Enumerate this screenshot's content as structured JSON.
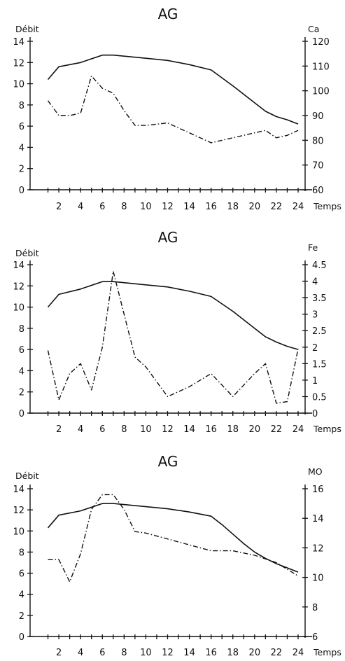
{
  "chart_data": [
    {
      "type": "line",
      "title": "AG",
      "xlabel": "Temps",
      "ylabel": "Débit",
      "y2label": "Ca",
      "xlim": [
        0,
        24
      ],
      "ylim": [
        0,
        14
      ],
      "y2lim": [
        60,
        120
      ],
      "xticks": [
        2,
        4,
        6,
        8,
        10,
        12,
        14,
        16,
        18,
        20,
        22,
        24
      ],
      "yticks": [
        0,
        2,
        4,
        6,
        8,
        10,
        12,
        14
      ],
      "y2ticks": [
        60,
        70,
        80,
        90,
        100,
        110,
        120
      ],
      "series": [
        {
          "axis": "left",
          "style": "solid",
          "x": [
            1,
            2,
            4,
            6,
            7,
            8,
            10,
            12,
            14,
            16,
            18,
            20,
            21,
            22,
            23,
            24
          ],
          "y": [
            10.4,
            11.6,
            12.0,
            12.7,
            12.7,
            12.6,
            12.4,
            12.2,
            11.8,
            11.3,
            9.8,
            8.2,
            7.4,
            6.9,
            6.6,
            6.2
          ]
        },
        {
          "axis": "right",
          "style": "dash-dot",
          "x": [
            1,
            2,
            3,
            4,
            5,
            6,
            7,
            8,
            9,
            10,
            12,
            14,
            16,
            18,
            20,
            21,
            22,
            23,
            24
          ],
          "y": [
            96,
            90,
            90,
            91,
            106,
            101,
            99,
            92,
            86,
            86,
            87,
            83,
            79,
            81,
            83,
            84,
            81,
            82,
            84
          ]
        }
      ]
    },
    {
      "type": "line",
      "title": "AG",
      "xlabel": "Temps",
      "ylabel": "Débit",
      "y2label": "Fe",
      "xlim": [
        0,
        24
      ],
      "ylim": [
        0,
        14
      ],
      "y2lim": [
        0,
        4.5
      ],
      "xticks": [
        2,
        4,
        6,
        8,
        10,
        12,
        14,
        16,
        18,
        20,
        22,
        24
      ],
      "yticks": [
        0,
        2,
        4,
        6,
        8,
        10,
        12,
        14
      ],
      "y2ticks": [
        0,
        0.5,
        1,
        1.5,
        2,
        2.5,
        3,
        3.5,
        4,
        4.5
      ],
      "series": [
        {
          "axis": "left",
          "style": "solid",
          "x": [
            1,
            2,
            4,
            6,
            7,
            8,
            10,
            12,
            14,
            16,
            18,
            20,
            21,
            22,
            23,
            24
          ],
          "y": [
            10.0,
            11.2,
            11.7,
            12.4,
            12.4,
            12.3,
            12.1,
            11.9,
            11.5,
            11.0,
            9.6,
            8.0,
            7.2,
            6.7,
            6.3,
            6.0
          ]
        },
        {
          "axis": "right",
          "style": "dash-dot",
          "x": [
            1,
            2,
            3,
            4,
            5,
            6,
            7,
            8,
            9,
            10,
            12,
            14,
            16,
            18,
            20,
            21,
            22,
            23,
            24
          ],
          "y": [
            1.9,
            0.4,
            1.2,
            1.5,
            0.7,
            2.0,
            4.3,
            3.0,
            1.7,
            1.4,
            0.5,
            0.8,
            1.2,
            0.5,
            1.2,
            1.5,
            0.3,
            0.35,
            1.95
          ]
        }
      ]
    },
    {
      "type": "line",
      "title": "AG",
      "xlabel": "Temps",
      "ylabel": "Débit",
      "y2label": "MO",
      "xlim": [
        0,
        24
      ],
      "ylim": [
        0,
        14
      ],
      "y2lim": [
        6,
        16
      ],
      "xticks": [
        2,
        4,
        6,
        8,
        10,
        12,
        14,
        16,
        18,
        20,
        22,
        24
      ],
      "yticks": [
        0,
        2,
        4,
        6,
        8,
        10,
        12,
        14
      ],
      "y2ticks": [
        6,
        8,
        10,
        12,
        14,
        16
      ],
      "series": [
        {
          "axis": "left",
          "style": "solid",
          "x": [
            1,
            2,
            4,
            6,
            7,
            8,
            10,
            12,
            14,
            16,
            17,
            18,
            19,
            20,
            21,
            22,
            23,
            24
          ],
          "y": [
            10.3,
            11.5,
            11.9,
            12.6,
            12.6,
            12.5,
            12.3,
            12.1,
            11.8,
            11.4,
            10.6,
            9.7,
            8.8,
            8.0,
            7.4,
            6.9,
            6.5,
            6.1
          ]
        },
        {
          "axis": "right",
          "style": "dash-dot",
          "x": [
            1,
            2,
            3,
            4,
            5,
            6,
            7,
            8,
            9,
            10,
            12,
            14,
            16,
            18,
            20,
            22,
            24
          ],
          "y": [
            11.2,
            11.2,
            9.7,
            11.6,
            14.6,
            15.6,
            15.6,
            14.6,
            13.1,
            13.0,
            12.6,
            12.2,
            11.8,
            11.8,
            11.5,
            11.0,
            10.1
          ]
        }
      ]
    }
  ]
}
